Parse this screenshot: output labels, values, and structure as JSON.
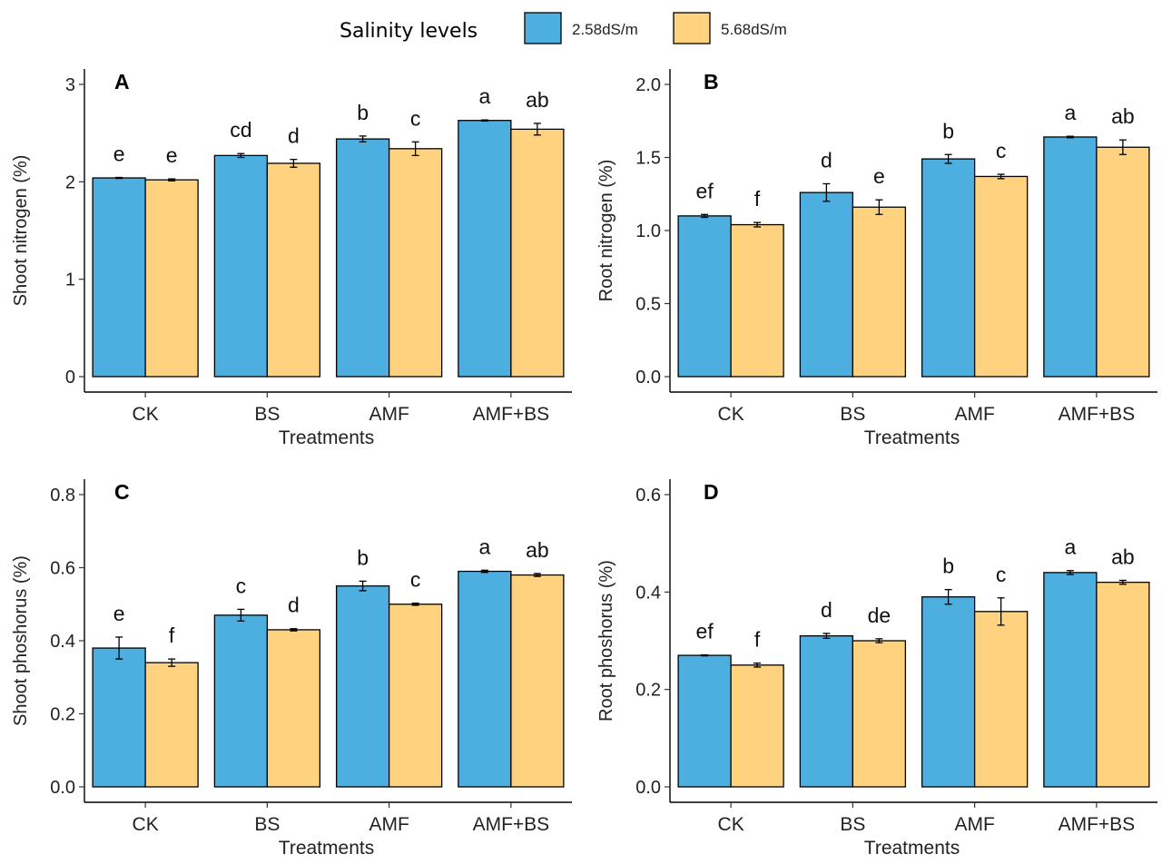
{
  "legend": {
    "title": "Salinity levels",
    "items": [
      {
        "label": "2.58dS/m",
        "color": "#4daee0"
      },
      {
        "label": "5.68dS/m",
        "color": "#ffd27f"
      }
    ]
  },
  "chart_data": [
    {
      "panel": "A",
      "type": "bar",
      "xlabel": "Treatments",
      "ylabel": "Shoot nitrogen (%)",
      "categories": [
        "CK",
        "BS",
        "AMF",
        "AMF+BS"
      ],
      "ylim": [
        0,
        3
      ],
      "yticks": [
        "0",
        "1",
        "2",
        "3"
      ],
      "series": [
        {
          "name": "2.58dS/m",
          "values": [
            2.04,
            2.27,
            2.44,
            2.63
          ],
          "err": [
            0.005,
            0.02,
            0.03,
            0.005
          ],
          "letters": [
            "e",
            "cd",
            "b",
            "a"
          ]
        },
        {
          "name": "5.68dS/m",
          "values": [
            2.02,
            2.19,
            2.34,
            2.54
          ],
          "err": [
            0.01,
            0.04,
            0.07,
            0.06
          ],
          "letters": [
            "e",
            "d",
            "c",
            "ab"
          ]
        }
      ]
    },
    {
      "panel": "B",
      "type": "bar",
      "xlabel": "Treatments",
      "ylabel": "Root nitrogen (%)",
      "categories": [
        "CK",
        "BS",
        "AMF",
        "AMF+BS"
      ],
      "ylim": [
        0,
        2
      ],
      "yticks": [
        "0.0",
        "0.5",
        "1.0",
        "1.5",
        "2.0"
      ],
      "series": [
        {
          "name": "2.58dS/m",
          "values": [
            1.1,
            1.26,
            1.49,
            1.64
          ],
          "err": [
            0.01,
            0.06,
            0.03,
            0.005
          ],
          "letters": [
            "ef",
            "d",
            "b",
            "a"
          ]
        },
        {
          "name": "5.68dS/m",
          "values": [
            1.04,
            1.16,
            1.37,
            1.57
          ],
          "err": [
            0.015,
            0.05,
            0.015,
            0.05
          ],
          "letters": [
            "f",
            "e",
            "c",
            "ab"
          ]
        }
      ]
    },
    {
      "panel": "C",
      "type": "bar",
      "xlabel": "Treatments",
      "ylabel": "Shoot phoshorus (%)",
      "categories": [
        "CK",
        "BS",
        "AMF",
        "AMF+BS"
      ],
      "ylim": [
        0,
        0.8
      ],
      "yticks": [
        "0.0",
        "0.2",
        "0.4",
        "0.6",
        "0.8"
      ],
      "series": [
        {
          "name": "2.58dS/m",
          "values": [
            0.38,
            0.47,
            0.55,
            0.59
          ],
          "err": [
            0.03,
            0.016,
            0.013,
            0.003
          ],
          "letters": [
            "e",
            "c",
            "b",
            "a"
          ]
        },
        {
          "name": "5.68dS/m",
          "values": [
            0.34,
            0.43,
            0.5,
            0.58
          ],
          "err": [
            0.01,
            0.003,
            0.003,
            0.004
          ],
          "letters": [
            "f",
            "d",
            "c",
            "ab"
          ]
        }
      ]
    },
    {
      "panel": "D",
      "type": "bar",
      "xlabel": "Treatments",
      "ylabel": "Root phoshorus (%)",
      "categories": [
        "CK",
        "BS",
        "AMF",
        "AMF+BS"
      ],
      "ylim": [
        0,
        0.6
      ],
      "yticks": [
        "0.0",
        "0.2",
        "0.4",
        "0.6"
      ],
      "series": [
        {
          "name": "2.58dS/m",
          "values": [
            0.27,
            0.31,
            0.39,
            0.44
          ],
          "err": [
            0.001,
            0.005,
            0.015,
            0.004
          ],
          "letters": [
            "ef",
            "d",
            "b",
            "a"
          ]
        },
        {
          "name": "5.68dS/m",
          "values": [
            0.25,
            0.3,
            0.36,
            0.42
          ],
          "err": [
            0.004,
            0.004,
            0.028,
            0.004
          ],
          "letters": [
            "f",
            "de",
            "c",
            "ab"
          ]
        }
      ]
    }
  ]
}
